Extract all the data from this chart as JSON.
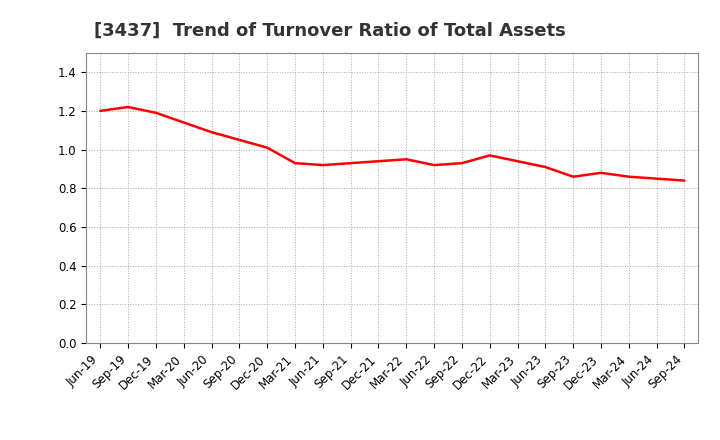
{
  "title": "[3437]  Trend of Turnover Ratio of Total Assets",
  "x_labels": [
    "Jun-19",
    "Sep-19",
    "Dec-19",
    "Mar-20",
    "Jun-20",
    "Sep-20",
    "Dec-20",
    "Mar-21",
    "Jun-21",
    "Sep-21",
    "Dec-21",
    "Mar-22",
    "Jun-22",
    "Sep-22",
    "Dec-22",
    "Mar-23",
    "Jun-23",
    "Sep-23",
    "Dec-23",
    "Mar-24",
    "Jun-24",
    "Sep-24"
  ],
  "y_values": [
    1.2,
    1.22,
    1.19,
    1.14,
    1.09,
    1.05,
    1.01,
    0.93,
    0.92,
    0.93,
    0.94,
    0.95,
    0.92,
    0.93,
    0.97,
    0.94,
    0.91,
    0.86,
    0.88,
    0.86,
    0.85,
    0.84
  ],
  "line_color": "#FF0000",
  "line_width": 1.8,
  "ylim": [
    0.0,
    1.5
  ],
  "yticks": [
    0.0,
    0.2,
    0.4,
    0.6,
    0.8,
    1.0,
    1.2,
    1.4
  ],
  "background_color": "#FFFFFF",
  "plot_bg_color": "#FFFFFF",
  "grid_color": "#AAAAAA",
  "title_fontsize": 13,
  "tick_fontsize": 8.5
}
